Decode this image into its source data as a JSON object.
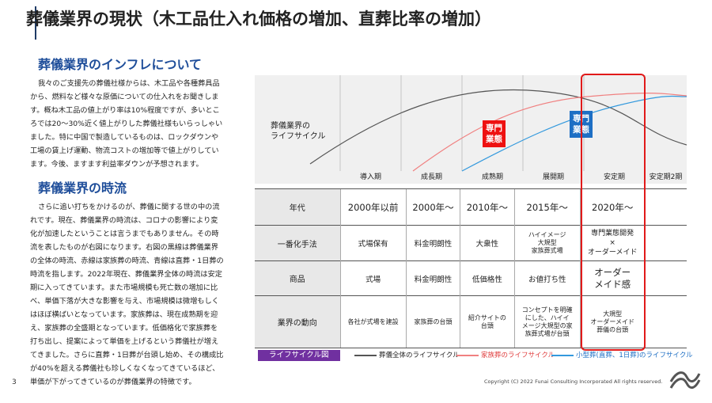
{
  "title": "葬儀業界の現状（木工品仕入れ価格の増加、直葬比率の増加）",
  "section1": {
    "heading": "葬儀業界のインフレについて",
    "lines": [
      "我々のご支援先の葬儀社様からは、木工品や各種葬具品",
      "から、燃料など様々な原価についての仕入れをお聞きしま",
      "す。概ね木工品の値上がり率は10%程度ですが、多いとこ",
      "ろでは20～30%近く値上がりした葬儀社様もいらっしゃい",
      "ました。特に中国で製造しているものは、ロックダウンや",
      "工場の賃上げ運動、物流コストの増加等で値上がりしてい",
      "ます。今後、ますます利益率ダウンが予想されます。"
    ]
  },
  "section2": {
    "heading": "葬儀業界の時流",
    "lines": [
      "さらに追い打ちをかけるのが、葬儀に関する世の中の流",
      "れです。現在、葬儀業界の時流は、コロナの影響により変",
      "化が加速したということは言うまでもありません。その時",
      "流を表したものが右図になります。右図の黒線は葬儀業界",
      "の全体の時流、赤線は家族葬の時流、青線は直葬・1日葬の",
      "時流を指します。2022年現在、葬儀業界全体の時流は安定",
      "期に入ってきています。また市場規模も死亡数の増加に比",
      "べ、単価下落が大きな影響を与え、市場規模は微増もしく",
      "はほぼ横ばいとなっています。家族葬は、現在成熟期を迎",
      "え、家族葬の全盛期となっています。低価格化で家族葬を",
      "打ち出し、提案によって単価を上げるという葬儀社が増え",
      "てきました。さらに直葬・1日葬が台頭し始め、その構成比",
      "が40%を超える葬儀社も珍しくなくなってきているほど、",
      "単価が下がってきているのが葬儀業界の特徴です。"
    ]
  },
  "chart": {
    "lifecycle_label_1": "葬儀業界の",
    "lifecycle_label_2": "ライフサイクル",
    "badge_red_1": "専門",
    "badge_red_2": "業態",
    "badge_blue_1": "専門",
    "badge_blue_2": "業態",
    "color_black": "#555555",
    "color_red": "#f08080",
    "color_blue": "#3399dd",
    "color_badge_red": "#ee1111",
    "color_badge_blue": "#1e6fc4"
  },
  "stages": [
    "導入期",
    "成長期",
    "成熟期",
    "展開期",
    "安定期",
    "安定期2期"
  ],
  "table": {
    "headers": [
      "年代",
      "一番化手法",
      "商品",
      "業界の動向"
    ],
    "era": [
      "2000年以前",
      "2000年～",
      "2010年～",
      "2015年～",
      "2020年～"
    ],
    "method": [
      "式場保有",
      "料金明朗性",
      "大衆性",
      "ハイイメージ",
      "大規型",
      "家族葬式場",
      "専門業態開発",
      "×",
      "オーダーメイド"
    ],
    "product": [
      "式場",
      "料金明朗性",
      "低価格性",
      "お値打ち性",
      "オーダー",
      "メイド感"
    ],
    "trend": [
      "各社が式場を建設",
      "家族葬の台頭",
      "紹介サイトの",
      "台頭",
      "コンセプトを明確",
      "にした、ハイイ",
      "メージ大規型の家",
      "族葬式場が台頭",
      "大規型",
      "オーダーメイド",
      "葬儀の台頭"
    ]
  },
  "legend": {
    "tag": "ライフサイクル図",
    "item1": "葬儀全体のライフサイクル",
    "item2": "家族葬のライフサイクル",
    "item3": "小型葬(直葬、1日葬)のライフサイクル"
  },
  "footer": {
    "page": "3",
    "copyright": "Copyright (C) 2022 Funai Consulting Incorporated All rights reserved."
  }
}
